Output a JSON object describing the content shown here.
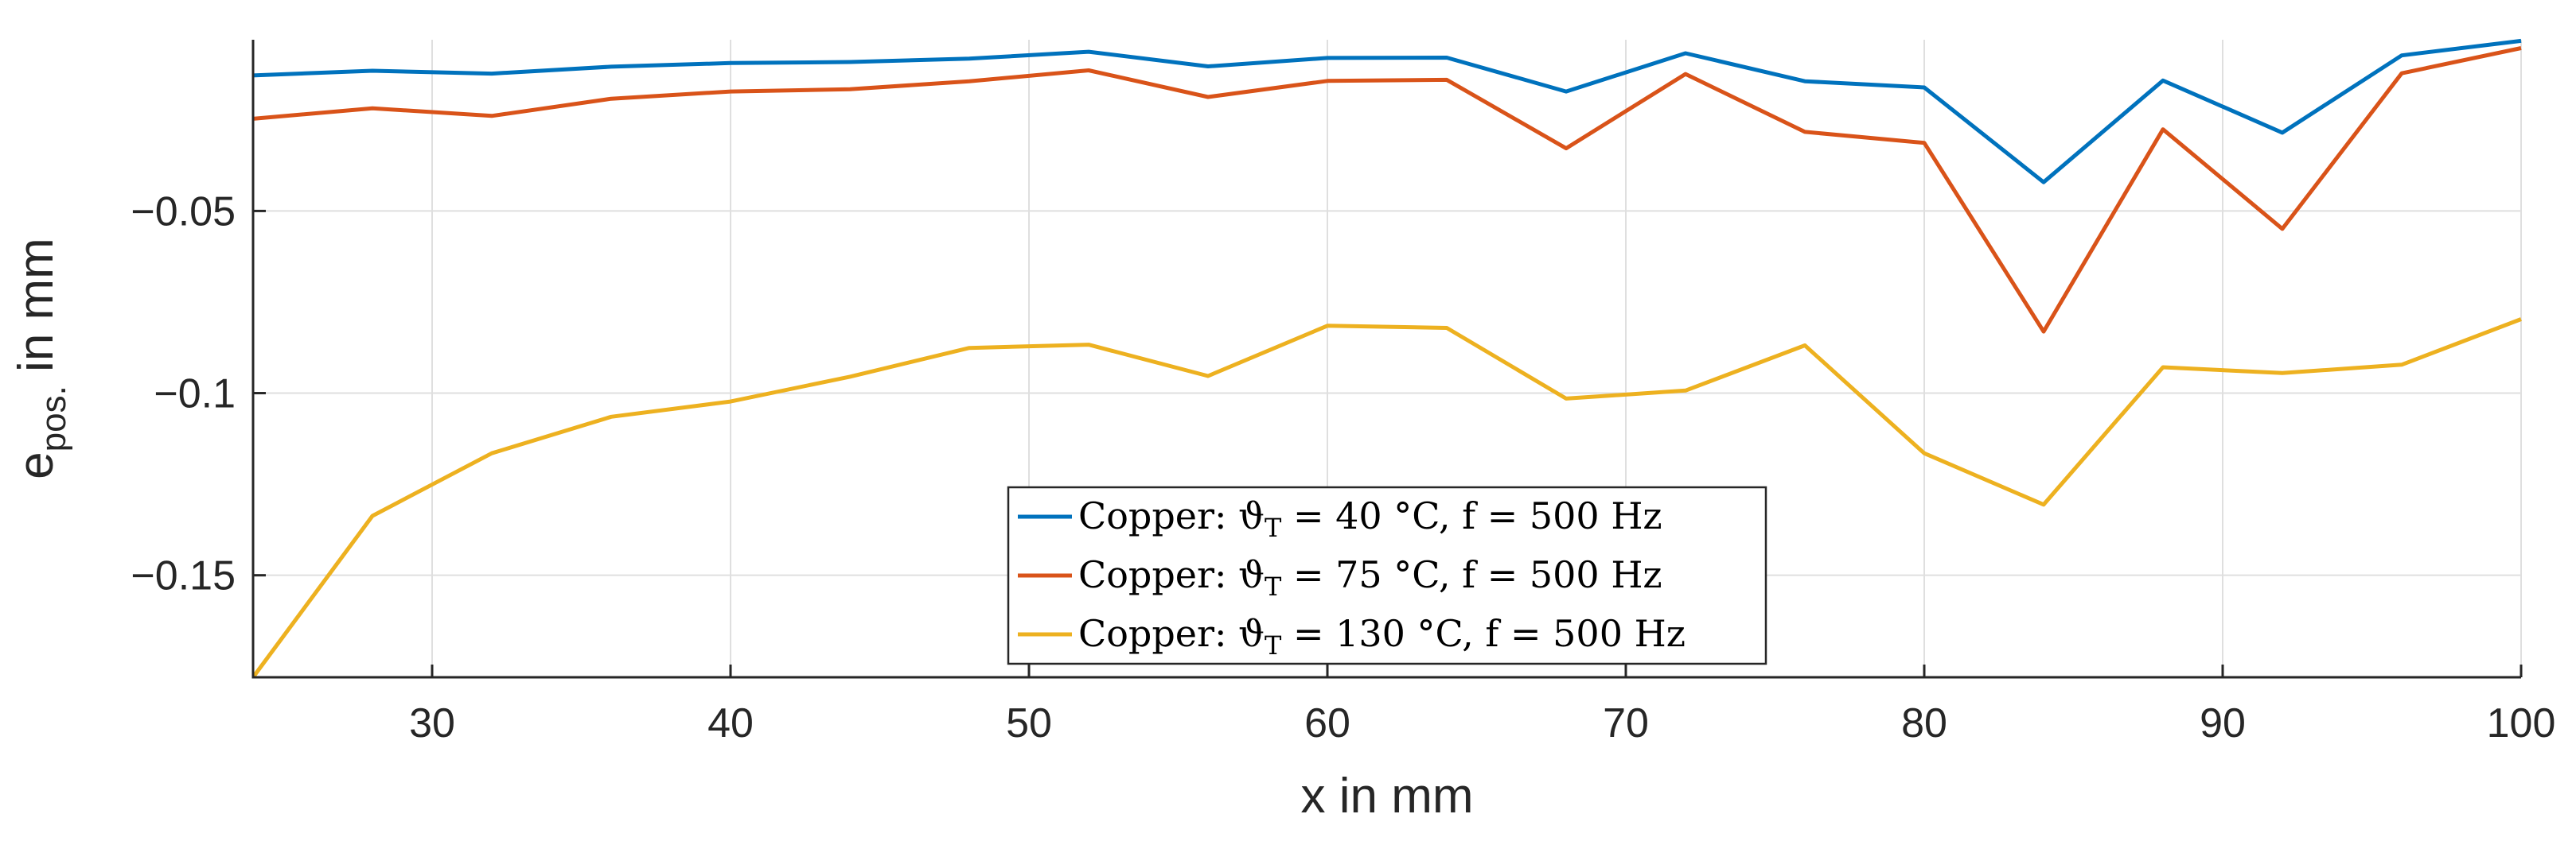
{
  "chart_data": {
    "type": "line",
    "xlabel": "x in mm",
    "ylabel": "e",
    "ylabel_subscript": "pos.",
    "ylabel_suffix": " in mm",
    "xlim": [
      24,
      100
    ],
    "ylim": [
      -0.178,
      -0.003
    ],
    "xticks": [
      30,
      40,
      50,
      60,
      70,
      80,
      90,
      100
    ],
    "xtick_labels": [
      "30",
      "40",
      "50",
      "60",
      "70",
      "80",
      "90",
      "100"
    ],
    "yticks": [
      -0.15,
      -0.1,
      -0.05
    ],
    "ytick_labels": [
      "−0.15",
      "−0.1",
      "−0.05"
    ],
    "grid": true,
    "legend_position": "bottom-center",
    "x": [
      24,
      28,
      32,
      36,
      40,
      44,
      48,
      52,
      56,
      60,
      64,
      68,
      72,
      76,
      80,
      84,
      88,
      92,
      96,
      100
    ],
    "series": [
      {
        "name": "Copper: ϑT = 40 °C, f = 500 Hz",
        "legend_prefix": "Copper: ϑ",
        "legend_sub": "T",
        "legend_suffix": " = 40 °C, f = 500 Hz",
        "color": "#0072BD",
        "values": [
          -0.0128,
          -0.0115,
          -0.0123,
          -0.0104,
          -0.0094,
          -0.0091,
          -0.0082,
          -0.0063,
          -0.0103,
          -0.008,
          -0.0079,
          -0.0172,
          -0.0067,
          -0.0144,
          -0.0161,
          -0.0421,
          -0.0142,
          -0.0285,
          -0.0073,
          -0.0033
        ]
      },
      {
        "name": "Copper: ϑT = 75 °C, f = 500 Hz",
        "legend_prefix": "Copper: ϑ",
        "legend_sub": "T",
        "legend_suffix": " = 75 °C, f = 500 Hz",
        "color": "#D95319",
        "values": [
          -0.0247,
          -0.0218,
          -0.0239,
          -0.0192,
          -0.0172,
          -0.0166,
          -0.0144,
          -0.0114,
          -0.0187,
          -0.0143,
          -0.014,
          -0.0328,
          -0.0124,
          -0.0283,
          -0.0313,
          -0.0831,
          -0.0276,
          -0.0549,
          -0.0122,
          -0.0053
        ]
      },
      {
        "name": "Copper: ϑT = 130 °C, f = 500 Hz",
        "legend_prefix": "Copper: ϑ",
        "legend_sub": "T",
        "legend_suffix": " = 130 °C, f = 500 Hz",
        "color": "#EDB120",
        "values": [
          -0.178,
          -0.1337,
          -0.1165,
          -0.1065,
          -0.1023,
          -0.0955,
          -0.0876,
          -0.0867,
          -0.0953,
          -0.0815,
          -0.0821,
          -0.1015,
          -0.0993,
          -0.0869,
          -0.1165,
          -0.1306,
          -0.0929,
          -0.0945,
          -0.0922,
          -0.0797
        ]
      }
    ]
  }
}
